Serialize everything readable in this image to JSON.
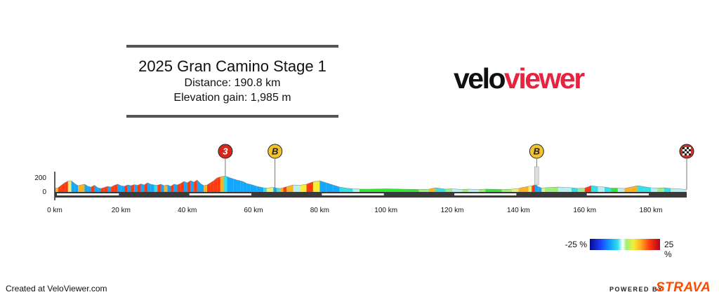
{
  "header": {
    "title": "2025 Gran Camino Stage 1",
    "distance": "Distance: 190.8 km",
    "elevation_gain": "Elevation gain: 1,985 m"
  },
  "brand": {
    "velo": "velo",
    "viewer": "viewer"
  },
  "legend": {
    "min": "-25 %",
    "max": "25 %"
  },
  "footer": {
    "created": "Created at VeloViewer.com",
    "powered_by": "POWERED BY",
    "strava": "STRAVA"
  },
  "colors": {
    "brand_red": "#e8233f",
    "strava_orange": "#fc4c02",
    "climb_cat3": "#d42a1e",
    "sprint_badge": "#f2c230"
  },
  "chart_data": {
    "type": "area",
    "xlabel": "",
    "ylabel": "",
    "xlim": [
      0,
      190.8
    ],
    "ylim": [
      0,
      200
    ],
    "x_ticks": [
      0,
      20,
      40,
      60,
      80,
      100,
      120,
      140,
      160,
      180
    ],
    "x_tick_labels": [
      "0 km",
      "20 km",
      "40 km",
      "60 km",
      "80 km",
      "100 km",
      "120 km",
      "140 km",
      "160 km",
      "180 km"
    ],
    "y_ticks": [
      0,
      200
    ],
    "y_tick_labels": [
      "0",
      "200"
    ],
    "elevation_profile": {
      "x_km": [
        0,
        1,
        2,
        3,
        4,
        5,
        6,
        7,
        8,
        9,
        10,
        11,
        12,
        13,
        14,
        15,
        16,
        17,
        18,
        19,
        20,
        21,
        22,
        23,
        24,
        25,
        26,
        27,
        28,
        29,
        30,
        31,
        32,
        33,
        34,
        35,
        36,
        37,
        38,
        39,
        40,
        41,
        42,
        43,
        44,
        45,
        46,
        47,
        48,
        49,
        50,
        51,
        52,
        53,
        54,
        55,
        56,
        57,
        58,
        59,
        60,
        61,
        62,
        63,
        64,
        65,
        66,
        67,
        68,
        69,
        70,
        72,
        74,
        76,
        78,
        80,
        82,
        84,
        86,
        88,
        90,
        92,
        95,
        100,
        105,
        110,
        113,
        115,
        118,
        120,
        123,
        125,
        128,
        130,
        135,
        138,
        140,
        142,
        143,
        144,
        145,
        146,
        147,
        148,
        150,
        152,
        154,
        156,
        158,
        160,
        162,
        164,
        166,
        168,
        170,
        172,
        174,
        176,
        178,
        180,
        182,
        184,
        186,
        188,
        190.8
      ],
      "elevation_m": [
        50,
        60,
        95,
        130,
        155,
        160,
        120,
        90,
        100,
        110,
        80,
        70,
        95,
        60,
        50,
        65,
        80,
        70,
        95,
        110,
        90,
        80,
        100,
        90,
        105,
        95,
        115,
        100,
        130,
        110,
        100,
        95,
        110,
        90,
        100,
        80,
        110,
        100,
        120,
        150,
        130,
        160,
        140,
        170,
        120,
        90,
        100,
        130,
        160,
        200,
        215,
        225,
        220,
        200,
        185,
        170,
        160,
        145,
        120,
        110,
        95,
        80,
        70,
        60,
        55,
        60,
        65,
        55,
        50,
        60,
        75,
        100,
        95,
        110,
        145,
        160,
        130,
        100,
        70,
        55,
        45,
        40,
        40,
        45,
        40,
        35,
        40,
        60,
        40,
        45,
        35,
        40,
        35,
        40,
        35,
        40,
        50,
        70,
        80,
        85,
        100,
        75,
        55,
        60,
        65,
        70,
        65,
        60,
        50,
        55,
        90,
        75,
        70,
        55,
        55,
        50,
        70,
        90,
        75,
        60,
        55,
        60,
        50,
        45,
        35
      ]
    },
    "markers": [
      {
        "type": "climb",
        "label": "3",
        "km": 51.5
      },
      {
        "type": "sprint",
        "label": "B",
        "km": 66.5
      },
      {
        "type": "sprint",
        "label": "B",
        "km": 145.5
      },
      {
        "type": "finish",
        "label": "",
        "km": 190.8
      }
    ],
    "gradient_scale": {
      "min_pct": -25,
      "max_pct": 25
    }
  }
}
